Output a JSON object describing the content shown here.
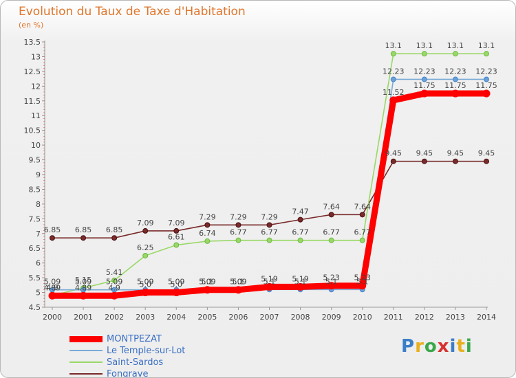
{
  "header": {
    "title": "Evolution du Taux de Taxe d'Habitation",
    "unit": "(en %)"
  },
  "logo": {
    "text": "Proxiti",
    "letters": [
      "P",
      "r",
      "o",
      "x",
      "i",
      "t",
      "i"
    ],
    "colors": [
      "#3a7ec7",
      "#e8b020",
      "#3aa84a",
      "#d83030",
      "#3a7ec7",
      "#e8b020",
      "#3aa84a"
    ]
  },
  "chart_data": {
    "type": "line",
    "title": "Evolution du Taux de Taxe d'Habitation",
    "ylabel": "(en %)",
    "x": [
      "2000",
      "2001",
      "2002",
      "2003",
      "2004",
      "2005",
      "2006",
      "2007",
      "2008",
      "2009",
      "2010",
      "2011",
      "2012",
      "2013",
      "2014"
    ],
    "ylim": [
      4.5,
      13.5
    ],
    "yticks": [
      "4.5",
      "5",
      "5.5",
      "6",
      "6.5",
      "7",
      "7.5",
      "8",
      "8.5",
      "9",
      "9.5",
      "10",
      "10.5",
      "11",
      "11.5",
      "12",
      "12.5",
      "13",
      "13.5"
    ],
    "grid": false,
    "legend_position": "bottom-left",
    "series": [
      {
        "name": "MONTPEZAT",
        "color": "#ff0000",
        "values": [
          4.89,
          4.89,
          4.89,
          5.0,
          5.0,
          5.09,
          5.09,
          5.19,
          5.19,
          5.23,
          5.23,
          11.52,
          11.75,
          11.75,
          11.75
        ],
        "labels": [
          "4.89",
          "4.89",
          "4.9",
          "5.0",
          "5.0",
          "5.09",
          "5.09",
          "5.19",
          "5.19",
          "5.23",
          "5.23",
          "11.52",
          "11.75",
          "11.75",
          "11.75"
        ]
      },
      {
        "name": "Le Temple-sur-Lot",
        "color": "#7aaad6",
        "values": [
          5.09,
          5.09,
          5.09,
          5.09,
          5.09,
          5.1,
          5.1,
          5.1,
          5.1,
          5.1,
          5.1,
          12.23,
          12.23,
          12.23,
          12.23
        ],
        "labels": [
          "5.09",
          "5.09",
          "5.09",
          "5.09",
          "5.09",
          "5.1",
          "5.1",
          "5.1",
          "5.1",
          "5.1",
          "5.1",
          "12.23",
          "12.23",
          "12.23",
          "12.23"
        ]
      },
      {
        "name": "Saint-Sardos",
        "color": "#99d866",
        "values": [
          4.9,
          5.15,
          5.41,
          6.25,
          6.61,
          6.74,
          6.77,
          6.77,
          6.77,
          6.77,
          6.77,
          13.1,
          13.1,
          13.1,
          13.1
        ],
        "labels": [
          "4.9",
          "5.15",
          "5.41",
          "6.25",
          "6.61",
          "6.74",
          "6.77",
          "6.77",
          "6.77",
          "6.77",
          "6.77",
          "13.1",
          "13.1",
          "13.1",
          "13.1"
        ]
      },
      {
        "name": "Fongrave",
        "color": "#7a2a2a",
        "values": [
          6.85,
          6.85,
          6.85,
          7.09,
          7.09,
          7.29,
          7.29,
          7.29,
          7.47,
          7.64,
          7.64,
          9.45,
          9.45,
          9.45,
          9.45
        ],
        "labels": [
          "6.85",
          "6.85",
          "6.85",
          "7.09",
          "7.09",
          "7.29",
          "7.29",
          "7.29",
          "7.47",
          "7.64",
          "7.64",
          "9.45",
          "9.45",
          "9.45",
          "9.45"
        ]
      }
    ]
  }
}
